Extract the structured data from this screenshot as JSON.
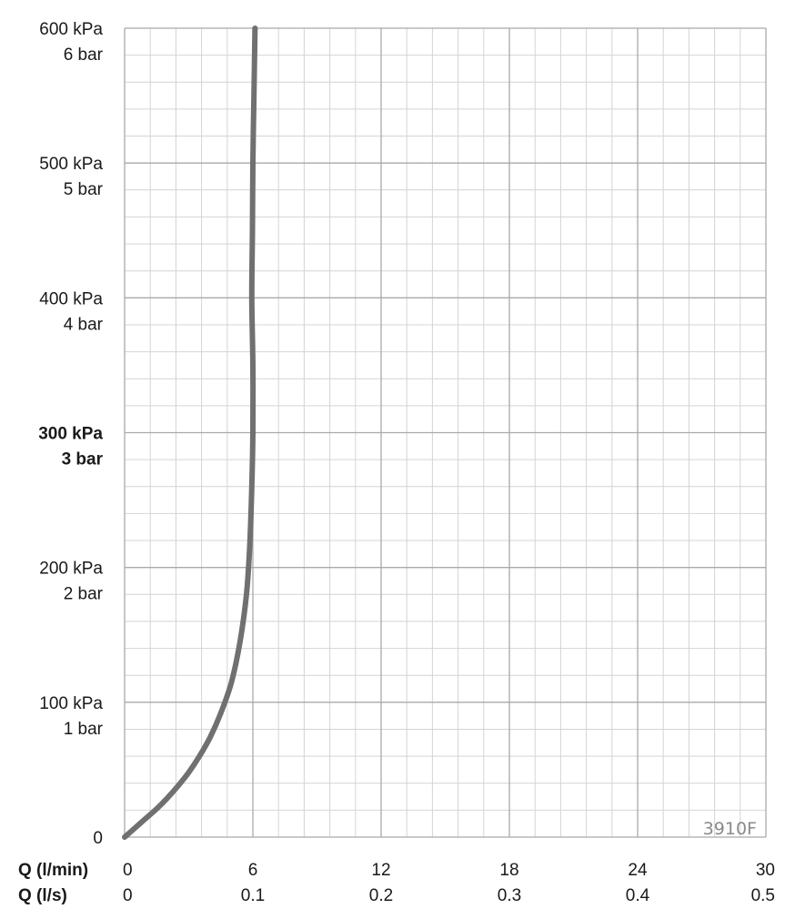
{
  "chart_data": {
    "type": "line",
    "title": "",
    "model_label": "3910F",
    "x_axes": [
      {
        "label": "Q (l/min)",
        "ticks": [
          "0",
          "6",
          "12",
          "18",
          "24",
          "30"
        ],
        "range": [
          0,
          30
        ]
      },
      {
        "label": "Q (l/s)",
        "ticks": [
          "0",
          "0.1",
          "0.2",
          "0.3",
          "0.4",
          "0.5"
        ],
        "range": [
          0,
          0.5
        ]
      }
    ],
    "y_axis": {
      "range": [
        0,
        600
      ],
      "unit": "kPa",
      "ticks": [
        {
          "value": 0,
          "kpa": "0",
          "bar": "",
          "bold": false
        },
        {
          "value": 100,
          "kpa": "100 kPa",
          "bar": "1 bar",
          "bold": false
        },
        {
          "value": 200,
          "kpa": "200 kPa",
          "bar": "2 bar",
          "bold": false
        },
        {
          "value": 300,
          "kpa": "300 kPa",
          "bar": "3 bar",
          "bold": true
        },
        {
          "value": 400,
          "kpa": "400 kPa",
          "bar": "4 bar",
          "bold": false
        },
        {
          "value": 500,
          "kpa": "500 kPa",
          "bar": "5 bar",
          "bold": false
        },
        {
          "value": 600,
          "kpa": "600 kPa",
          "bar": "6 bar",
          "bold": false
        }
      ]
    },
    "grid": {
      "major": true,
      "minor": true,
      "x_minor_per_major": 5,
      "y_minor_per_major": 5
    },
    "series": [
      {
        "color": "#707070",
        "points": [
          [
            0,
            0
          ],
          [
            0.5,
            7
          ],
          [
            1.0,
            14
          ],
          [
            1.5,
            21
          ],
          [
            2.0,
            29
          ],
          [
            2.5,
            38
          ],
          [
            3.0,
            48
          ],
          [
            3.5,
            60
          ],
          [
            4.0,
            74
          ],
          [
            4.5,
            92
          ],
          [
            5.0,
            115
          ],
          [
            5.4,
            145
          ],
          [
            5.7,
            180
          ],
          [
            5.85,
            215
          ],
          [
            5.95,
            260
          ],
          [
            6.0,
            300
          ],
          [
            6.0,
            350
          ],
          [
            5.95,
            400
          ],
          [
            5.98,
            450
          ],
          [
            6.0,
            500
          ],
          [
            6.05,
            550
          ],
          [
            6.1,
            600
          ]
        ]
      }
    ],
    "colors": {
      "grid_major": "#a9a9a9",
      "grid_minor": "#d4d4d4",
      "line": "#707070"
    }
  }
}
